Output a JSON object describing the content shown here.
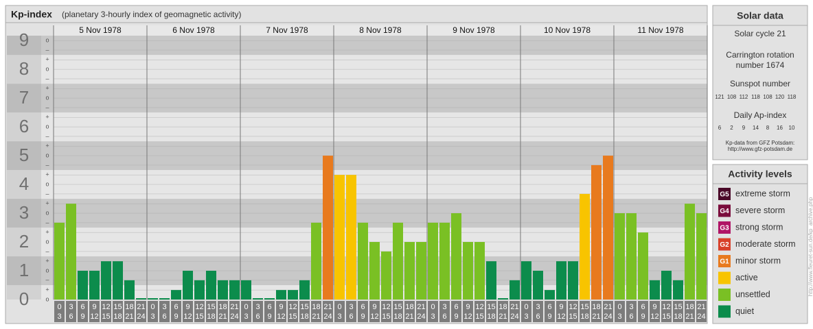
{
  "chart_data": {
    "type": "bar",
    "title": "Kp-index",
    "subtitle": "(planetary 3-hourly index of geomagnetic activity)",
    "categories": [
      "5 Nov 1978",
      "6 Nov 1978",
      "7 Nov 1978",
      "8 Nov 1978",
      "9 Nov 1978",
      "10 Nov 1978",
      "11 Nov 1978"
    ],
    "hour_labels": [
      [
        "0",
        "3"
      ],
      [
        "3",
        "6"
      ],
      [
        "6",
        "9"
      ],
      [
        "9",
        "12"
      ],
      [
        "12",
        "15"
      ],
      [
        "15",
        "18"
      ],
      [
        "18",
        "21"
      ],
      [
        "21",
        "24"
      ]
    ],
    "values": [
      [
        2.67,
        3.33,
        1,
        1,
        1.33,
        1.33,
        0.67,
        0
      ],
      [
        0,
        0,
        0.33,
        1,
        0.67,
        1,
        0.67,
        0.67
      ],
      [
        0.67,
        0,
        0,
        0.33,
        0.33,
        0.67,
        2.67,
        5
      ],
      [
        4.33,
        4.33,
        2.67,
        2,
        1.67,
        2.67,
        2,
        2
      ],
      [
        2.67,
        2.67,
        3,
        2,
        2,
        1.33,
        0,
        0.67
      ],
      [
        1.33,
        1,
        0.33,
        1.33,
        1.33,
        3.67,
        4.67,
        5
      ],
      [
        3,
        3,
        2.33,
        0.67,
        1,
        0.67,
        3.33,
        3
      ]
    ],
    "colors": [
      [
        "#7ac024",
        "#7ac024",
        "#0c8c4c",
        "#0c8c4c",
        "#0c8c4c",
        "#0c8c4c",
        "#0c8c4c",
        "#0c8c4c"
      ],
      [
        "#0c8c4c",
        "#0c8c4c",
        "#0c8c4c",
        "#0c8c4c",
        "#0c8c4c",
        "#0c8c4c",
        "#0c8c4c",
        "#0c8c4c"
      ],
      [
        "#0c8c4c",
        "#0c8c4c",
        "#0c8c4c",
        "#0c8c4c",
        "#0c8c4c",
        "#0c8c4c",
        "#7ac024",
        "#e87a1e"
      ],
      [
        "#f8c400",
        "#f8c400",
        "#7ac024",
        "#7ac024",
        "#7ac024",
        "#7ac024",
        "#7ac024",
        "#7ac024"
      ],
      [
        "#7ac024",
        "#7ac024",
        "#7ac024",
        "#7ac024",
        "#7ac024",
        "#0c8c4c",
        "#0c8c4c",
        "#0c8c4c"
      ],
      [
        "#0c8c4c",
        "#0c8c4c",
        "#0c8c4c",
        "#0c8c4c",
        "#0c8c4c",
        "#f8c400",
        "#e87a1e",
        "#e87a1e"
      ],
      [
        "#7ac024",
        "#7ac024",
        "#7ac024",
        "#0c8c4c",
        "#0c8c4c",
        "#0c8c4c",
        "#7ac024",
        "#7ac024"
      ]
    ],
    "ylim": [
      0,
      9.17
    ],
    "yticks": [
      0,
      1,
      2,
      3,
      4,
      5,
      6,
      7,
      8,
      9
    ],
    "minor_ticks": [
      {
        "value": 9,
        "label": "o"
      },
      {
        "value": 8.67,
        "label": "–"
      },
      {
        "value": 8.33,
        "label": "+"
      },
      {
        "value": 8,
        "label": "o"
      },
      {
        "value": 7.67,
        "label": "–"
      },
      {
        "value": 7.33,
        "label": "+"
      },
      {
        "value": 7,
        "label": "o"
      },
      {
        "value": 6.67,
        "label": "–"
      },
      {
        "value": 6.33,
        "label": "+"
      },
      {
        "value": 6,
        "label": "o"
      },
      {
        "value": 5.67,
        "label": "–"
      },
      {
        "value": 5.33,
        "label": "+"
      },
      {
        "value": 5,
        "label": "o"
      },
      {
        "value": 4.67,
        "label": "–"
      },
      {
        "value": 4.33,
        "label": "+"
      },
      {
        "value": 4,
        "label": "o"
      },
      {
        "value": 3.67,
        "label": "–"
      },
      {
        "value": 3.33,
        "label": "+"
      },
      {
        "value": 3,
        "label": "o"
      },
      {
        "value": 2.67,
        "label": "–"
      },
      {
        "value": 2.33,
        "label": "+"
      },
      {
        "value": 2,
        "label": "o"
      },
      {
        "value": 1.67,
        "label": "–"
      },
      {
        "value": 1.33,
        "label": "+"
      },
      {
        "value": 1,
        "label": "o"
      },
      {
        "value": 0.67,
        "label": "–"
      },
      {
        "value": 0.33,
        "label": "+"
      },
      {
        "value": 0,
        "label": "o"
      }
    ],
    "grid": true
  },
  "solar_data": {
    "title": "Solar data",
    "cycle": "Solar cycle 21",
    "carrington": [
      "Carrington rotation",
      "number 1674"
    ],
    "sunspot_label": "Sunspot number",
    "sunspot_numbers": [
      121,
      108,
      112,
      118,
      108,
      120,
      118
    ],
    "ap_label": "Daily Ap-index",
    "ap_index": [
      6,
      2,
      9,
      14,
      8,
      16,
      10
    ],
    "source": "Kp-data from GFZ Potsdam:",
    "source_url": "http://www.gfz-potsdam.de"
  },
  "activity_levels": {
    "title": "Activity levels",
    "items": [
      {
        "badge": "G5",
        "label": "extreme storm",
        "color": "#4a0828"
      },
      {
        "badge": "G4",
        "label": "severe storm",
        "color": "#7a0c3c"
      },
      {
        "badge": "G3",
        "label": "strong storm",
        "color": "#b01466"
      },
      {
        "badge": "G2",
        "label": "moderate storm",
        "color": "#d8402a"
      },
      {
        "badge": "G1",
        "label": "minor storm",
        "color": "#e87a1e"
      },
      {
        "badge": null,
        "label": "active",
        "color": "#f8c400"
      },
      {
        "badge": null,
        "label": "unsettled",
        "color": "#7ac024"
      },
      {
        "badge": null,
        "label": "quiet",
        "color": "#0c8c4c"
      }
    ]
  },
  "side_url": "http://www.fleuret-sun.de/kp_archive.php"
}
